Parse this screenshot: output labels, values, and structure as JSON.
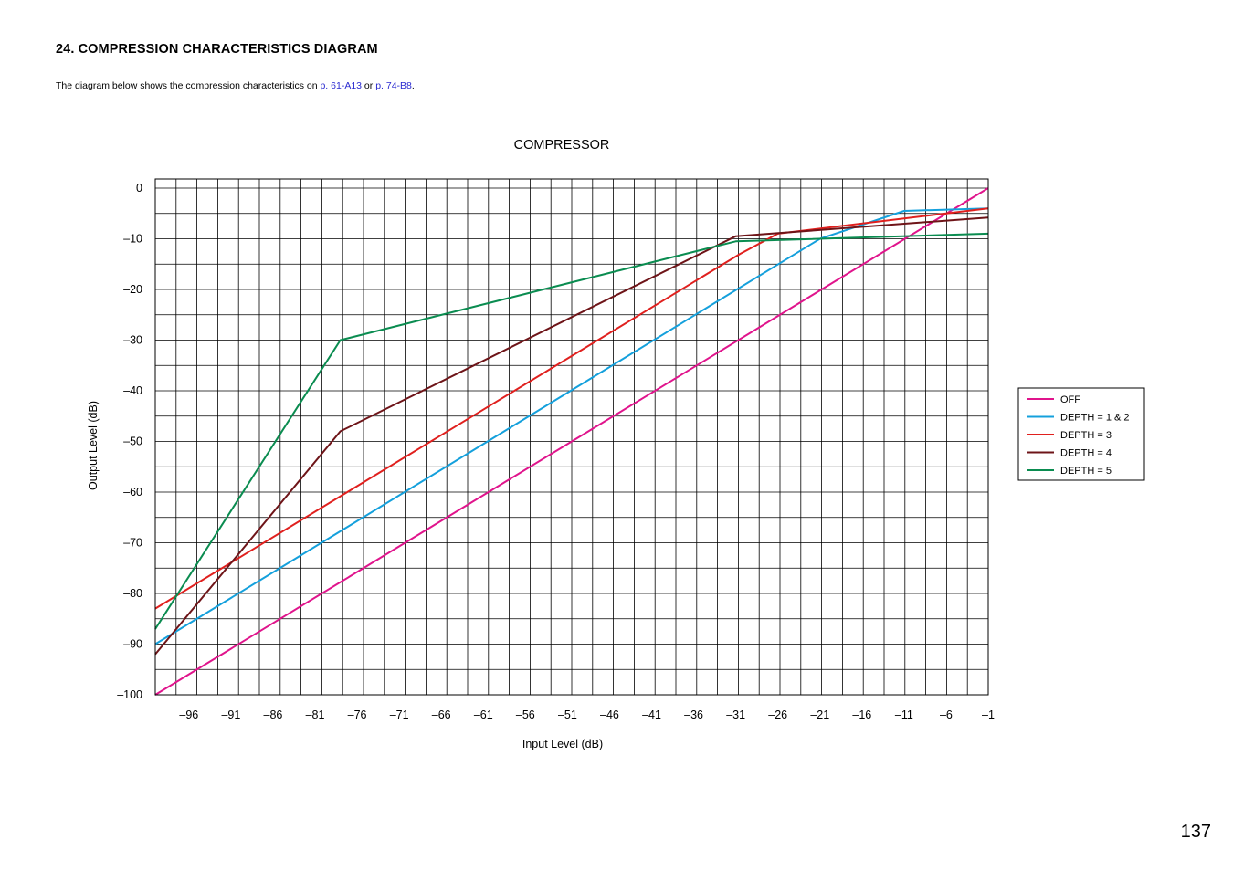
{
  "page": {
    "heading": "24. COMPRESSION CHARACTERISTICS DIAGRAM",
    "intro": {
      "text_before": "The diagram below shows the compression characteristics on ",
      "link1": "p. 61-A13",
      "text_between": " or ",
      "link2": "p. 74-B8",
      "text_after": "."
    },
    "page_number": "137",
    "link_color": "#2a2ad0"
  },
  "chart_data": {
    "type": "line",
    "title": "COMPRESSOR",
    "xlabel": "Input Level (dB)",
    "ylabel": "Output Level (dB)",
    "xlim": [
      -100,
      -1
    ],
    "ylim": [
      -100,
      0
    ],
    "x_ticks": [
      -96,
      -91,
      -86,
      -81,
      -76,
      -71,
      -66,
      -61,
      -56,
      -51,
      -46,
      -41,
      -36,
      -31,
      -26,
      -21,
      -16,
      -11,
      -6,
      -1
    ],
    "x_tick_labels": [
      "–96",
      "–91",
      "–86",
      "–81",
      "–76",
      "–71",
      "–66",
      "–61",
      "–56",
      "–51",
      "–46",
      "–41",
      "–36",
      "–31",
      "–26",
      "–21",
      "–16",
      "–11",
      "–6",
      "–1"
    ],
    "y_ticks": [
      0,
      -10,
      -20,
      -30,
      -40,
      -50,
      -60,
      -70,
      -80,
      -90,
      -100
    ],
    "y_tick_labels": [
      "0",
      "–10",
      "–20",
      "–30",
      "–40",
      "–50",
      "–60",
      "–70",
      "–80",
      "–90",
      "–100"
    ],
    "grid": true,
    "legend_position": "right",
    "series": [
      {
        "name": "OFF",
        "color": "#e0148c",
        "points": [
          [
            -100,
            -100
          ],
          [
            -1,
            0
          ]
        ]
      },
      {
        "name": "DEPTH = 1 & 2",
        "color": "#14a0dc",
        "points": [
          [
            -100,
            -90
          ],
          [
            -21,
            -10
          ],
          [
            -11,
            -4.5
          ],
          [
            -1,
            -4
          ]
        ]
      },
      {
        "name": "DEPTH = 3",
        "color": "#e0201e",
        "points": [
          [
            -100,
            -83
          ],
          [
            -30.5,
            -13
          ],
          [
            -26,
            -9
          ],
          [
            -1,
            -4
          ]
        ]
      },
      {
        "name": "DEPTH = 4",
        "color": "#6e1418",
        "points": [
          [
            -100,
            -92
          ],
          [
            -78,
            -48
          ],
          [
            -31,
            -9.5
          ],
          [
            -1,
            -5.8
          ]
        ]
      },
      {
        "name": "DEPTH = 5",
        "color": "#0a8c50",
        "points": [
          [
            -100,
            -87
          ],
          [
            -78,
            -30
          ],
          [
            -31,
            -10.5
          ],
          [
            -1,
            -9
          ]
        ]
      }
    ]
  }
}
